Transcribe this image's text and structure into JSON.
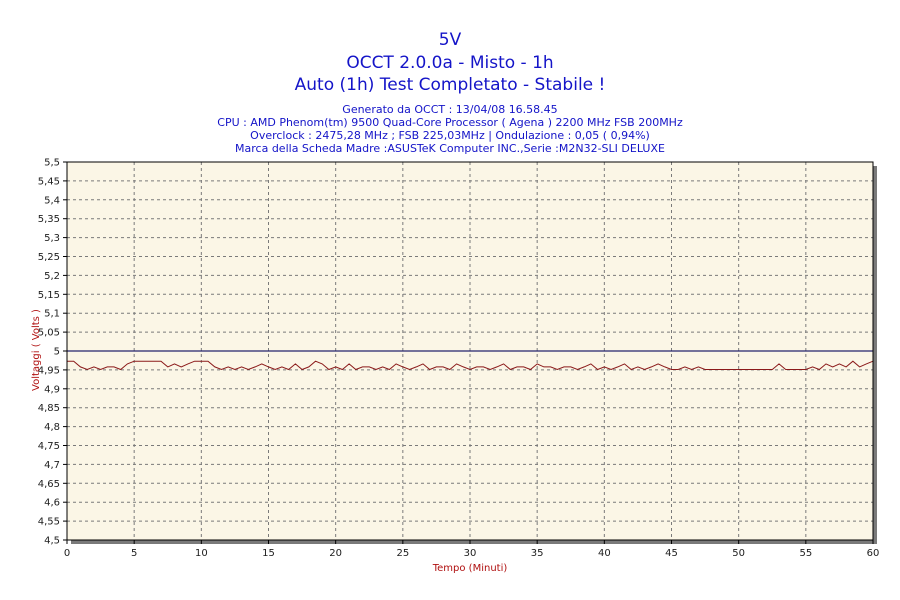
{
  "header": {
    "title_1": "5V",
    "title_2": "OCCT 2.0.0a - Misto - 1h",
    "title_3": "Auto (1h) Test Completato - Stabile !",
    "info_1": "Generato da OCCT : 13/04/08 16.58.45",
    "info_2": "CPU : AMD Phenom(tm) 9500 Quad-Core Processor ( Agena ) 2200 MHz FSB 200MHz",
    "info_3": "Overclock : 2475,28 MHz ; FSB 225,03MHz | Ondulazione : 0,05 ( 0,94%)",
    "info_4": "Marca della Scheda Madre :ASUSTeK Computer INC.,Serie :M2N32-SLI DELUXE"
  },
  "colors": {
    "title": "#1414c8",
    "plot_background": "#fbf6e6",
    "grid": "#7a7a7a",
    "reference_line": "#23236e",
    "series": "#8b1a1a",
    "axis_label": "#b01010"
  },
  "chart_data": {
    "type": "line",
    "xlabel": "Tempo (Minuti)",
    "ylabel": "Voltaggi ( Volts )",
    "xlim": [
      0,
      60
    ],
    "ylim": [
      4.5,
      5.5
    ],
    "x_ticks": [
      0,
      5,
      10,
      15,
      20,
      25,
      30,
      35,
      40,
      45,
      50,
      55,
      60
    ],
    "x_tick_labels": [
      "0",
      "5",
      "10",
      "15",
      "20",
      "25",
      "30",
      "35",
      "40",
      "45",
      "50",
      "55",
      "60"
    ],
    "y_ticks": [
      4.5,
      4.55,
      4.6,
      4.65,
      4.7,
      4.75,
      4.8,
      4.85,
      4.9,
      4.95,
      5.0,
      5.05,
      5.1,
      5.15,
      5.2,
      5.25,
      5.3,
      5.35,
      5.4,
      5.45,
      5.5
    ],
    "y_tick_labels": [
      "4,5",
      "4,55",
      "4,6",
      "4,65",
      "4,7",
      "4,75",
      "4,8",
      "4,85",
      "4,9",
      "4,95",
      "5",
      "5,05",
      "5,1",
      "5,15",
      "5,2",
      "5,25",
      "5,3",
      "5,35",
      "5,4",
      "5,45",
      "5,5"
    ],
    "grid": true,
    "reference_line": {
      "y": 5.0
    },
    "series": [
      {
        "x": [
          0,
          0.5,
          1,
          1.5,
          2,
          2.5,
          3,
          3.5,
          4,
          4.5,
          5,
          5.5,
          6,
          6.5,
          7,
          7.5,
          8,
          8.5,
          9,
          9.5,
          10,
          10.5,
          11,
          11.5,
          12,
          12.5,
          13,
          13.5,
          14,
          14.5,
          15,
          15.5,
          16,
          16.5,
          17,
          17.5,
          18,
          18.5,
          19,
          19.5,
          20,
          20.5,
          21,
          21.5,
          22,
          22.5,
          23,
          23.5,
          24,
          24.5,
          25,
          25.5,
          26,
          26.5,
          27,
          27.5,
          28,
          28.5,
          29,
          29.5,
          30,
          30.5,
          31,
          31.5,
          32,
          32.5,
          33,
          33.5,
          34,
          34.5,
          35,
          35.5,
          36,
          36.5,
          37,
          37.5,
          38,
          38.5,
          39,
          39.5,
          40,
          40.5,
          41,
          41.5,
          42,
          42.5,
          43,
          43.5,
          44,
          44.5,
          45,
          45.5,
          46,
          46.5,
          47,
          47.5,
          48,
          48.5,
          49,
          49.5,
          50,
          50.5,
          51,
          51.5,
          52,
          52.5,
          53,
          53.5,
          54,
          54.5,
          55,
          55.5,
          56,
          56.5,
          57,
          57.5,
          58,
          58.5,
          59,
          59.5,
          60
        ],
        "values": [
          4.973,
          4.973,
          4.958,
          4.951,
          4.958,
          4.951,
          4.958,
          4.958,
          4.951,
          4.966,
          4.973,
          4.973,
          4.973,
          4.973,
          4.973,
          4.958,
          4.966,
          4.958,
          4.966,
          4.973,
          4.973,
          4.973,
          4.958,
          4.951,
          4.958,
          4.951,
          4.958,
          4.951,
          4.958,
          4.966,
          4.958,
          4.951,
          4.958,
          4.951,
          4.966,
          4.951,
          4.958,
          4.973,
          4.966,
          4.951,
          4.958,
          4.951,
          4.966,
          4.951,
          4.958,
          4.958,
          4.951,
          4.958,
          4.951,
          4.966,
          4.958,
          4.951,
          4.958,
          4.966,
          4.951,
          4.958,
          4.958,
          4.951,
          4.966,
          4.958,
          4.951,
          4.958,
          4.958,
          4.951,
          4.958,
          4.966,
          4.951,
          4.958,
          4.958,
          4.951,
          4.966,
          4.958,
          4.958,
          4.951,
          4.958,
          4.958,
          4.951,
          4.958,
          4.966,
          4.951,
          4.958,
          4.951,
          4.958,
          4.966,
          4.951,
          4.958,
          4.951,
          4.958,
          4.966,
          4.958,
          4.951,
          4.951,
          4.958,
          4.951,
          4.958,
          4.951,
          4.951,
          4.951,
          4.951,
          4.951,
          4.951,
          4.951,
          4.951,
          4.951,
          4.951,
          4.951,
          4.966,
          4.951,
          4.951,
          4.951,
          4.951,
          4.958,
          4.951,
          4.966,
          4.958,
          4.966,
          4.958,
          4.973,
          4.958,
          4.966,
          4.973
        ]
      }
    ]
  }
}
